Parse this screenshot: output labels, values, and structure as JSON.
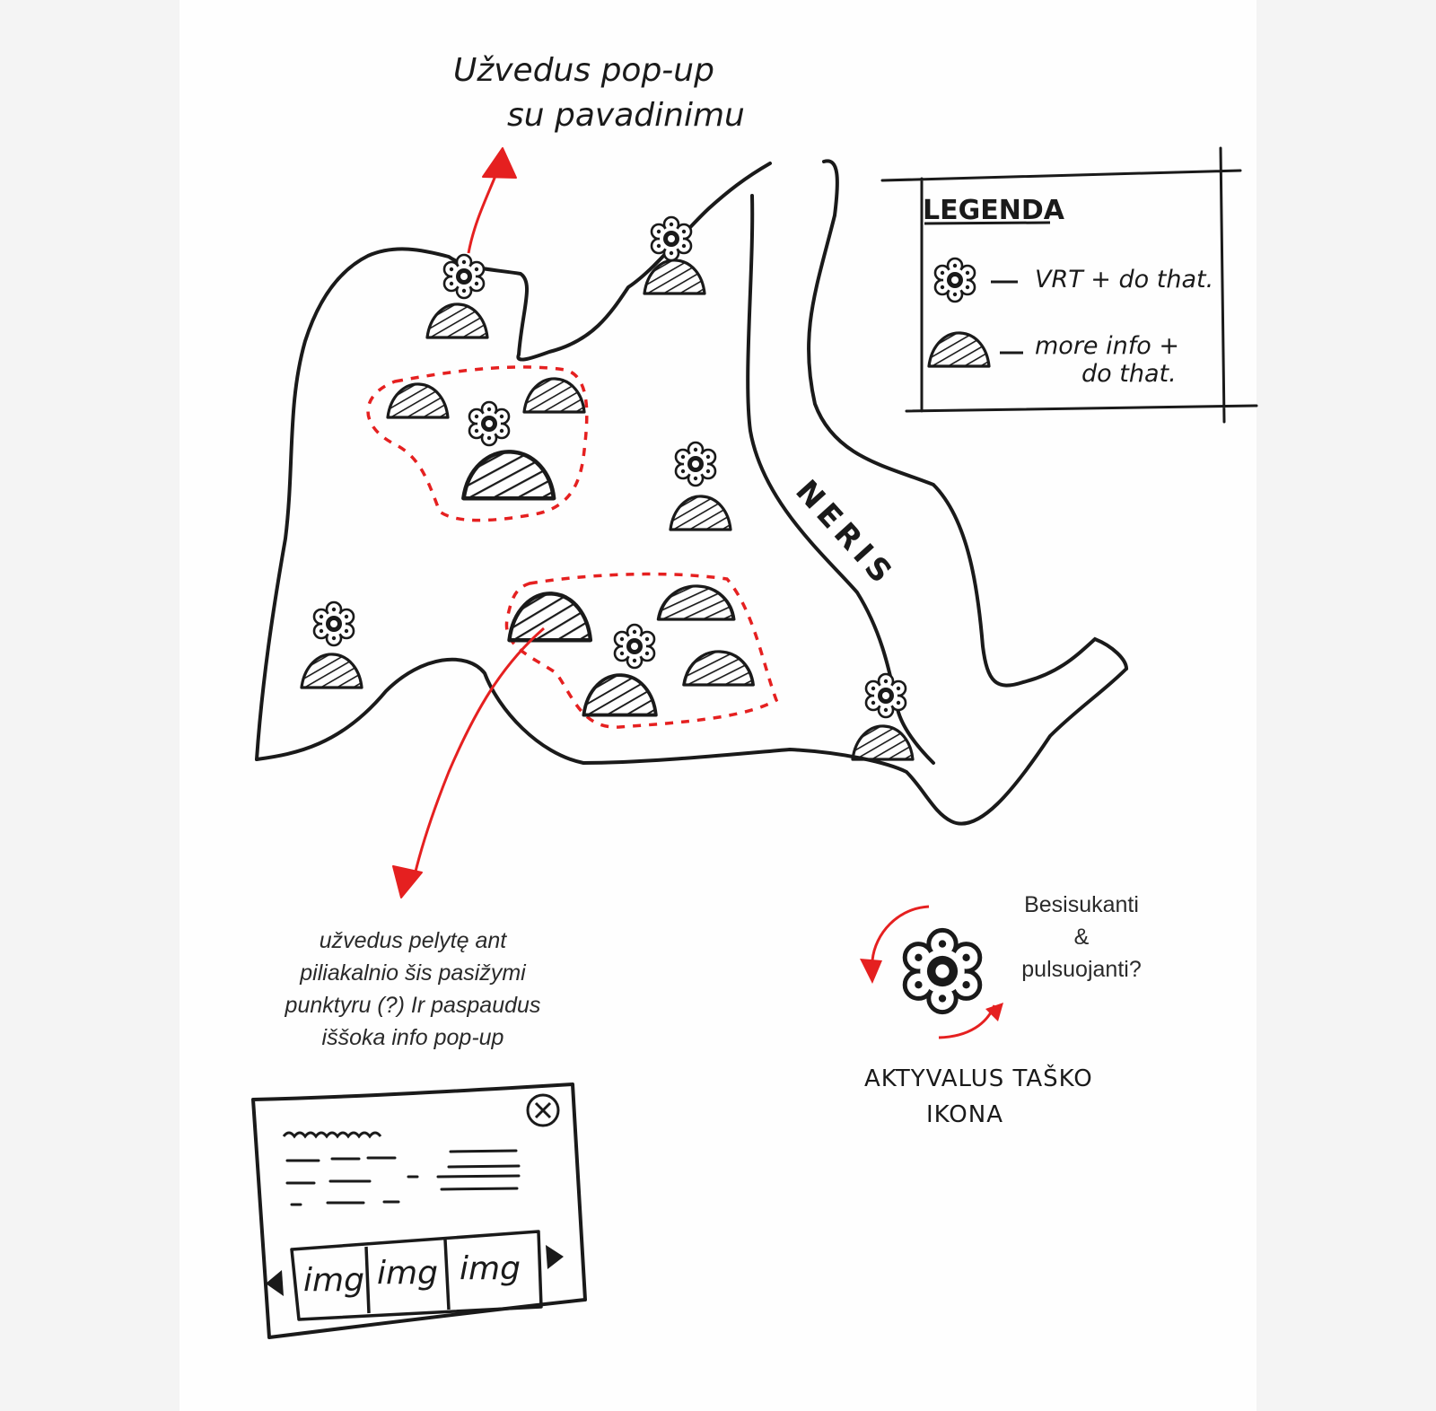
{
  "annotations": {
    "top_hover": [
      "Užvedus pop-up",
      "su pavadinimu"
    ],
    "river_name": "NERIS",
    "hover_note": [
      "užvedus pelytę ant",
      "piliakalnio šis pasižymi",
      "punktyru (?) Ir paspaudus",
      "iššoka info pop-up"
    ],
    "spin_note": [
      "Besisukanti",
      "&",
      "pulsuojanti?"
    ],
    "active_icon_caption": [
      "AKTYVALUS TAŠKO",
      "IKONA"
    ]
  },
  "legend": {
    "title": "LEGENDA",
    "items": [
      {
        "icon": "flower-point-icon",
        "label": "VRT + do that."
      },
      {
        "icon": "hillfort-icon",
        "label": [
          "more info +",
          "do that."
        ]
      }
    ]
  },
  "popup": {
    "images": [
      "img",
      "img",
      "img"
    ]
  },
  "colors": {
    "ink": "#1a1a1a",
    "accent": "#e52020"
  }
}
